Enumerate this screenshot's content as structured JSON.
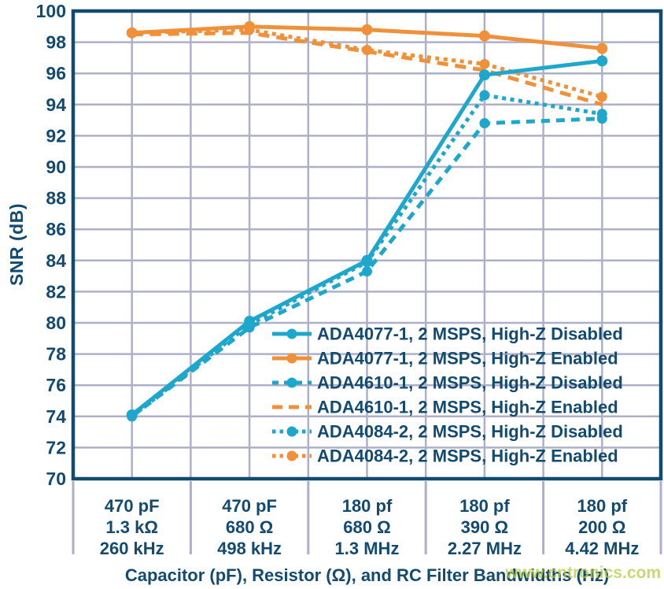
{
  "chart_data": {
    "type": "line",
    "title": "",
    "ylabel": "SNR (dB)",
    "xlabel": "Capacitor (pF), Resistor (Ω), and RC Filter Bandwidths (Hz)",
    "ylim": [
      70,
      100
    ],
    "ytick_step": 2,
    "grid": true,
    "legend_position": "inside-bottom-right",
    "axis_color": "#134a70",
    "grid_color": "#aeb0ca",
    "watermark": "www.cntronics.com",
    "watermark_color": "#b9cc3e",
    "categories": [
      [
        "470 pF",
        "1.3 kΩ",
        "260 kHz"
      ],
      [
        "470 pF",
        "680 Ω",
        "498 kHz"
      ],
      [
        "180 pf",
        "680 Ω",
        "1.3 MHz"
      ],
      [
        "180 pf",
        "390 Ω",
        "2.27 MHz"
      ],
      [
        "180 pf",
        "200 Ω",
        "4.42 MHz"
      ]
    ],
    "series": [
      {
        "name": "ADA4077-1, 2 MSPS, High-Z Disabled",
        "color": "#1ea7cc",
        "style": "dotted-solid-order-note",
        "line": "solid",
        "marker": "circle",
        "values": [
          74.1,
          80.1,
          84.0,
          95.9,
          96.8
        ]
      },
      {
        "name": "ADA4077-1, 2 MSPS, High-Z Enabled",
        "color": "#f0913a",
        "style": "solid",
        "line": "solid",
        "marker": "circle",
        "values": [
          98.6,
          99.0,
          98.8,
          98.4,
          97.6
        ]
      },
      {
        "name": "ADA4610-1, 2 MSPS, High-Z Disabled",
        "color": "#1ea7cc",
        "style": "dashed",
        "line": "dashed",
        "marker": "circle",
        "values": [
          74.0,
          79.7,
          83.3,
          92.8,
          93.1
        ]
      },
      {
        "name": "ADA4610-1, 2 MSPS, High-Z Enabled",
        "color": "#f0913a",
        "style": "dashed",
        "line": "dashed",
        "marker": "none",
        "values": [
          98.5,
          98.6,
          97.4,
          96.2,
          94.0
        ]
      },
      {
        "name": "ADA4084-2, 2 MSPS, High-Z Disabled",
        "color": "#1ea7cc",
        "style": "dotted",
        "line": "dotted",
        "marker": "circle",
        "values": [
          74.0,
          79.9,
          83.9,
          94.6,
          93.4
        ]
      },
      {
        "name": "ADA4084-2, 2 MSPS, High-Z Enabled",
        "color": "#f0913a",
        "style": "dotted",
        "line": "dotted",
        "marker": "circle",
        "values": [
          98.6,
          98.8,
          97.5,
          96.6,
          94.5
        ]
      }
    ]
  }
}
